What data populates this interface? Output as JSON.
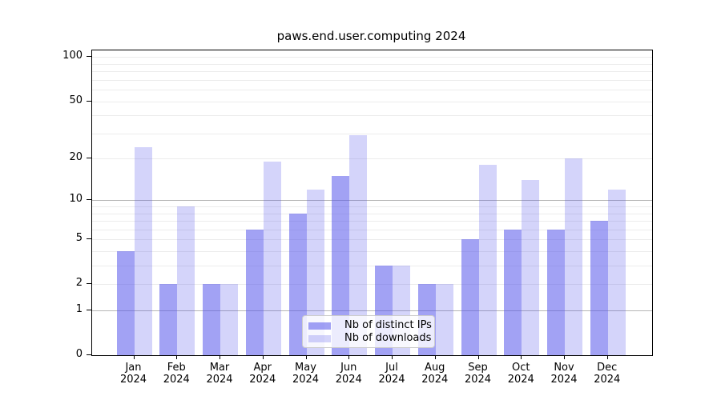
{
  "title": "paws.end.user.computing 2024",
  "colors": {
    "bar_base": "#5555eb",
    "ips_fill": "rgba(85,85,235,0.55)",
    "downloads_fill": "rgba(85,85,235,0.25)",
    "grid_major": "#b5b5b5",
    "grid_minor": "#ebebeb",
    "frame": "#000000",
    "text": "#000000",
    "legend_border": "#cccccc",
    "background": "#ffffff"
  },
  "chart_data": {
    "type": "bar",
    "title": "paws.end.user.computing 2024",
    "categories": [
      "Jan 2024",
      "Feb 2024",
      "Mar 2024",
      "Apr 2024",
      "May 2024",
      "Jun 2024",
      "Jul 2024",
      "Aug 2024",
      "Sep 2024",
      "Oct 2024",
      "Nov 2024",
      "Dec 2024"
    ],
    "x_tick_line1": [
      "Jan",
      "Feb",
      "Mar",
      "Apr",
      "May",
      "Jun",
      "Jul",
      "Aug",
      "Sep",
      "Oct",
      "Nov",
      "Dec"
    ],
    "x_tick_line2": [
      "2024",
      "2024",
      "2024",
      "2024",
      "2024",
      "2024",
      "2024",
      "2024",
      "2024",
      "2024",
      "2024",
      "2024"
    ],
    "series": [
      {
        "name": "Nb of distinct IPs",
        "key": "ips",
        "color": "rgba(85,85,235,0.55)",
        "values": [
          4,
          2,
          2,
          6,
          8,
          15,
          3,
          2,
          5,
          6,
          6,
          7
        ]
      },
      {
        "name": "Nb of downloads",
        "key": "downloads",
        "color": "rgba(85,85,235,0.25)",
        "values": [
          24,
          9,
          2,
          19,
          12,
          29,
          3,
          2,
          18,
          14,
          20,
          12
        ]
      }
    ],
    "xlabel": "",
    "ylabel": "",
    "yscale": "log1p",
    "ylim": [
      0,
      111
    ],
    "y_ticks": [
      0,
      1,
      2,
      5,
      10,
      20,
      50,
      100
    ],
    "grid_major_values": [
      1,
      10
    ],
    "grid_minor_values": [
      2,
      3,
      4,
      5,
      6,
      7,
      8,
      9,
      20,
      30,
      40,
      50,
      60,
      70,
      80,
      90,
      100
    ],
    "grid": true,
    "legend_position": "lower center"
  }
}
